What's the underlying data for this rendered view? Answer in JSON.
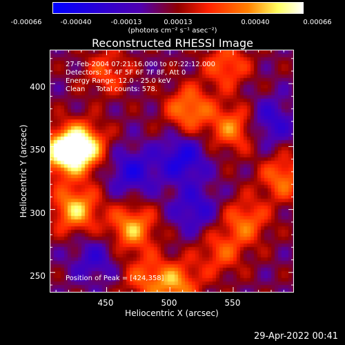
{
  "colorbar": {
    "tick_labels": [
      "-0.00066",
      "-0.00040",
      "-0.00013",
      "0.00013",
      "0.00040",
      "0.00066"
    ],
    "units": "(photons cm⁻² s⁻¹ asec⁻²)"
  },
  "title": "Reconstructed RHESSI Image",
  "info": {
    "time": "27-Feb-2004 07:21:16.000 to 07:22:12.000",
    "detectors": "Detectors: 3F 4F 5F 6F 7F 8F, Att 0",
    "energy": "Energy Range: 12.0 - 25.0 keV",
    "clean": "Clean     Total counts: 578.",
    "peak": "Position of Peak = [424,358]"
  },
  "axes": {
    "x_label": "Heliocentric X (arcsec)",
    "y_label": "Heliocentric Y (arcsec)",
    "x_ticks": [
      "450",
      "500",
      "550"
    ],
    "y_ticks": [
      "400",
      "350",
      "300",
      "250"
    ]
  },
  "timestamp": "29-Apr-2022 00:41",
  "chart_data": {
    "type": "heatmap",
    "title": "Reconstructed RHESSI Image",
    "xlabel": "Heliocentric X (arcsec)",
    "ylabel": "Heliocentric Y (arcsec)",
    "xlim": [
      405,
      598
    ],
    "ylim": [
      234,
      427
    ],
    "zlim": [
      -0.00066,
      0.00066
    ],
    "colorbar_ticks": [
      -0.00066,
      -0.0004,
      -0.00013,
      0.00013,
      0.0004,
      0.00066
    ],
    "colorscale": [
      "#0000ff",
      "#5000b0",
      "#900000",
      "#ff2000",
      "#ff8000",
      "#ffff60",
      "#ffffff"
    ],
    "peak": [
      424,
      358
    ],
    "sources": [
      {
        "x": 430,
        "y": 350,
        "value": 0.00066
      },
      {
        "x": 415,
        "y": 345,
        "value": 0.0006
      },
      {
        "x": 425,
        "y": 300,
        "value": 0.00055
      },
      {
        "x": 470,
        "y": 285,
        "value": 0.0005
      },
      {
        "x": 515,
        "y": 380,
        "value": 0.00045
      },
      {
        "x": 550,
        "y": 365,
        "value": 0.00042
      },
      {
        "x": 560,
        "y": 290,
        "value": 0.00038
      },
      {
        "x": 590,
        "y": 325,
        "value": 0.0004
      },
      {
        "x": 540,
        "y": 265,
        "value": 0.0003
      },
      {
        "x": 505,
        "y": 240,
        "value": 0.00045
      },
      {
        "x": 545,
        "y": 415,
        "value": 0.00035
      },
      {
        "x": 450,
        "y": 410,
        "value": 0.0003
      },
      {
        "x": 480,
        "y": 245,
        "value": 0.0003
      },
      {
        "x": 510,
        "y": 340,
        "value": -0.0004
      },
      {
        "x": 470,
        "y": 330,
        "value": -0.00035
      },
      {
        "x": 520,
        "y": 300,
        "value": -0.0003
      },
      {
        "x": 580,
        "y": 370,
        "value": -0.0003
      },
      {
        "x": 440,
        "y": 260,
        "value": -0.00025
      }
    ]
  }
}
